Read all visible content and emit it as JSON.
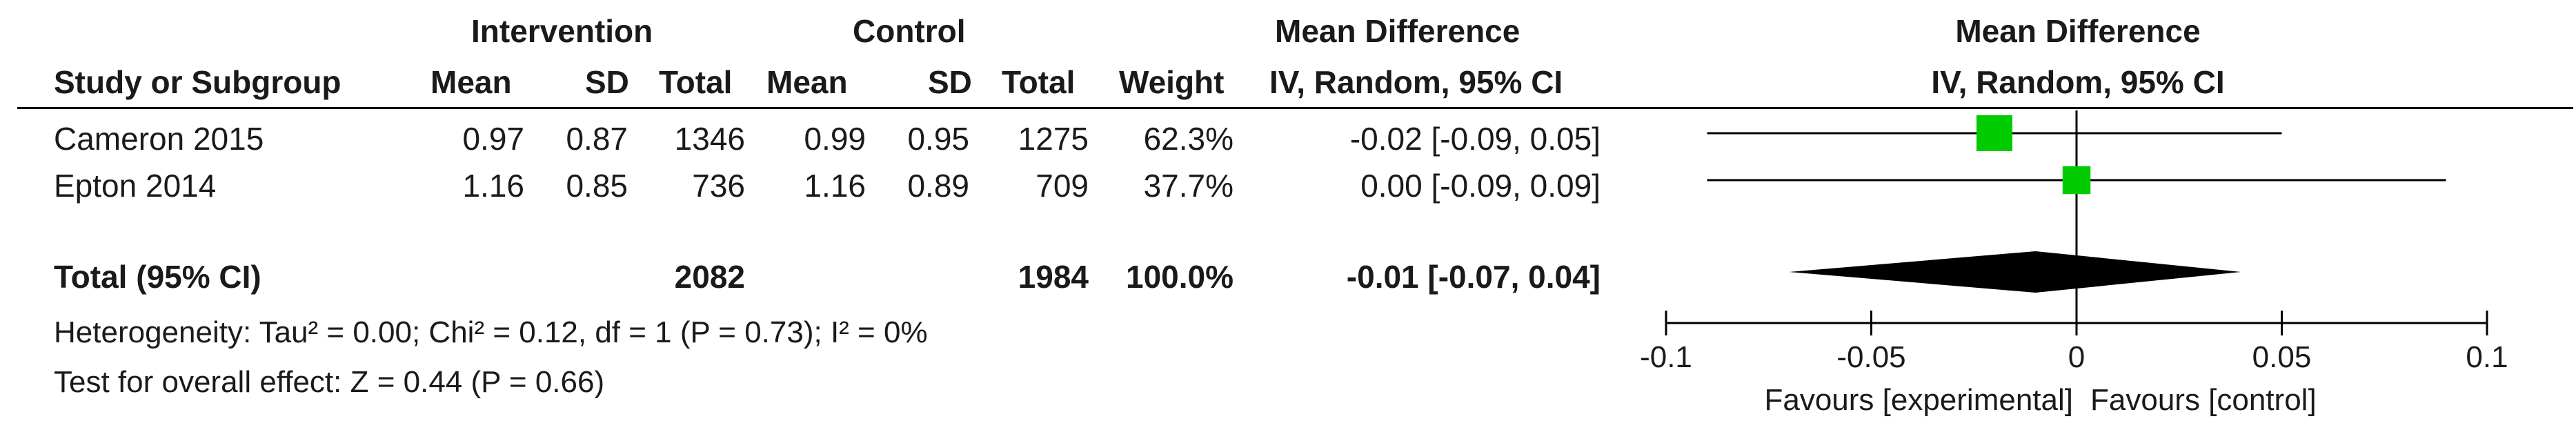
{
  "header": {
    "group1": "Intervention",
    "group2": "Control",
    "effect_col": "Mean Difference",
    "effect_col_sub": "IV, Random, 95% CI",
    "plot_title": "Mean Difference",
    "plot_subtitle": "IV, Random, 95% CI",
    "study_col": "Study or Subgroup",
    "mean1": "Mean",
    "sd1": "SD",
    "total1": "Total",
    "mean2": "Mean",
    "sd2": "SD",
    "total2": "Total",
    "weight": "Weight"
  },
  "studies": [
    {
      "name": "Cameron 2015",
      "mean1": "0.97",
      "sd1": "0.87",
      "total1": "1346",
      "mean2": "0.99",
      "sd2": "0.95",
      "total2": "1275",
      "weight": "62.3%",
      "ci_text": "-0.02 [-0.09, 0.05]"
    },
    {
      "name": "Epton 2014",
      "mean1": "1.16",
      "sd1": "0.85",
      "total1": "736",
      "mean2": "1.16",
      "sd2": "0.89",
      "total2": "709",
      "weight": "37.7%",
      "ci_text": "0.00 [-0.09, 0.09]"
    }
  ],
  "total": {
    "label": "Total (95% CI)",
    "total1": "2082",
    "total2": "1984",
    "weight": "100.0%",
    "ci_text": "-0.01 [-0.07, 0.04]"
  },
  "footer": {
    "heterogeneity": "Heterogeneity: Tau² = 0.00; Chi² = 0.12, df = 1 (P = 0.73); I² = 0%",
    "overall": "Test for overall effect: Z = 0.44 (P = 0.66)"
  },
  "axis": {
    "favours_left": "Favours [experimental]",
    "favours_right": "Favours [control]"
  },
  "colors": {
    "marker": "#00cc00",
    "diamond": "#000000",
    "line": "#000000"
  },
  "chart_data": {
    "type": "scatter",
    "subtype": "forest-plot",
    "title": "Mean Difference",
    "subtitle": "IV, Random, 95% CI",
    "x": {
      "lim": [
        -0.1,
        0.1
      ],
      "ticks": [
        -0.1,
        -0.05,
        0,
        0.05,
        0.1
      ],
      "tick_labels": [
        "-0.1",
        "-0.05",
        "0",
        "0.05",
        "0.1"
      ]
    },
    "studies": [
      {
        "name": "Cameron 2015",
        "estimate": -0.02,
        "lower": -0.09,
        "upper": 0.05,
        "weight": 62.3
      },
      {
        "name": "Epton 2014",
        "estimate": 0.0,
        "lower": -0.09,
        "upper": 0.09,
        "weight": 37.7
      }
    ],
    "pooled": {
      "name": "Total (95% CI)",
      "estimate": -0.01,
      "lower": -0.07,
      "upper": 0.04
    },
    "reference_line": 0
  }
}
